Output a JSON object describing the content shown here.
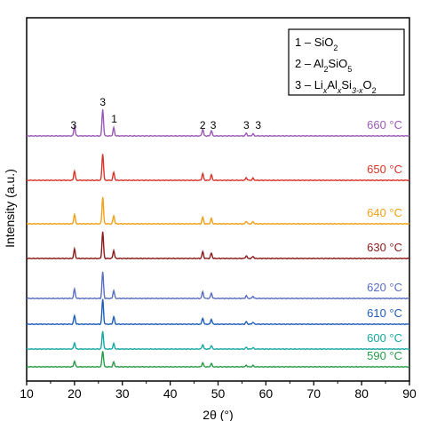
{
  "chart_data": {
    "type": "line",
    "xlabel": "2θ (°)",
    "ylabel": "Intensity (a.u.)",
    "xlim": [
      10,
      90
    ],
    "x_ticks": [
      "10",
      "20",
      "30",
      "40",
      "50",
      "60",
      "70",
      "80",
      "90"
    ],
    "legend": [
      {
        "num": "1 – ",
        "base": "SiO",
        "sub": "2"
      },
      {
        "num": "2 – ",
        "base": "Al",
        "sub": "2",
        "base2": "SiO",
        "sub2": "5"
      },
      {
        "num": "3 – ",
        "parts": [
          [
            "Li",
            ""
          ],
          [
            "x",
            "sub-it"
          ],
          [
            "Al",
            ""
          ],
          [
            "x",
            "sub-it"
          ],
          [
            "Si",
            ""
          ],
          [
            "3-x",
            "sub-it"
          ],
          [
            "O",
            ""
          ],
          [
            "2",
            "sub"
          ]
        ]
      }
    ],
    "peaks": [
      {
        "x": 20.0,
        "h": 0.35
      },
      {
        "x": 25.9,
        "h": 1.0
      },
      {
        "x": 28.2,
        "h": 0.3
      },
      {
        "x": 46.8,
        "h": 0.25
      },
      {
        "x": 48.6,
        "h": 0.2
      },
      {
        "x": 55.9,
        "h": 0.1
      },
      {
        "x": 57.3,
        "h": 0.08
      }
    ],
    "peak_labels": [
      {
        "x": 19.8,
        "text": "3"
      },
      {
        "x": 25.9,
        "text": "3"
      },
      {
        "x": 28.3,
        "text": "1"
      },
      {
        "x": 46.8,
        "text": "2"
      },
      {
        "x": 49.0,
        "text": "3"
      },
      {
        "x": 55.9,
        "text": "3"
      },
      {
        "x": 58.4,
        "text": "3"
      }
    ],
    "series": [
      {
        "name": "660 °C",
        "color": "#9b59b6",
        "scale": 30
      },
      {
        "name": "650 °C",
        "color": "#d9352b",
        "scale": 30
      },
      {
        "name": "640 °C",
        "color": "#f0a019",
        "scale": 30
      },
      {
        "name": "630 °C",
        "color": "#8b1a1a",
        "scale": 30
      },
      {
        "name": "620 °C",
        "color": "#5a6fc0",
        "scale": 30
      },
      {
        "name": "610 °C",
        "color": "#1f5fb8",
        "scale": 28
      },
      {
        "name": "600 °C",
        "color": "#18a8a0",
        "scale": 20
      },
      {
        "name": "590 °C",
        "color": "#2a9a4a",
        "scale": 18
      }
    ]
  }
}
